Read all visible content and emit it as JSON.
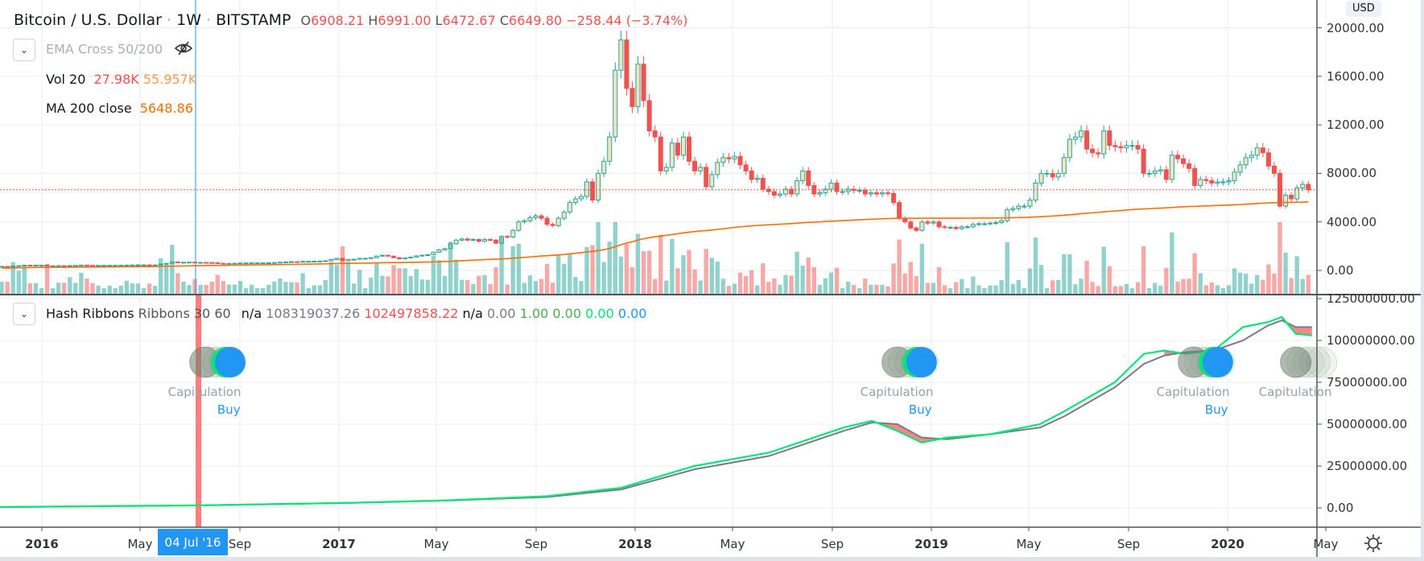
{
  "header": {
    "symbol": "Bitcoin / U.S. Dollar",
    "interval": "1W",
    "exchange": "BITSTAMP",
    "sep": "·",
    "open_label": "O",
    "open": "6908.21",
    "high_label": "H",
    "high": "6991.00",
    "low_label": "L",
    "low": "6472.67",
    "close_label": "C",
    "close": "6649.80",
    "change": "−258.44 (−3.74%)"
  },
  "legend": {
    "ema": {
      "label": "EMA Cross 50/200",
      "hidden": true
    },
    "vol": {
      "label": "Vol 20",
      "value1": "27.98K",
      "value2": "55.957K"
    },
    "ma": {
      "label": "MA 200 close",
      "value": "5648.86"
    },
    "hash": {
      "label": "Hash Ribbons",
      "sublabel": "Ribbons",
      "params": "30 60",
      "v1": "n/a",
      "v2": "108319037.26",
      "v3": "102497858.22",
      "v4": "n/a",
      "v5": "0.00",
      "v6": "1.00",
      "v7": "0.00",
      "v8": "0.00",
      "v9": "0.00"
    }
  },
  "price_axis": {
    "currency": "USD",
    "ticks": [
      "20000.00",
      "16000.00",
      "12000.00",
      "8000.00",
      "4000.00",
      "0.00"
    ],
    "tick_values": [
      20000,
      16000,
      12000,
      8000,
      4000,
      0
    ]
  },
  "hash_axis": {
    "ticks": [
      "125000000.00",
      "100000000.00",
      "75000000.00",
      "50000000.00",
      "25000000.00",
      "0.00"
    ],
    "tick_values": [
      125,
      100,
      75,
      50,
      25,
      0
    ]
  },
  "time_axis": {
    "labels": [
      {
        "text": "2016",
        "date": "2016-01-01",
        "bold": true
      },
      {
        "text": "May",
        "date": "2016-05-01"
      },
      {
        "text": "Sep",
        "date": "2016-09-01"
      },
      {
        "text": "2017",
        "date": "2017-01-01",
        "bold": true
      },
      {
        "text": "May",
        "date": "2017-05-01"
      },
      {
        "text": "Sep",
        "date": "2017-09-01"
      },
      {
        "text": "2018",
        "date": "2018-01-01",
        "bold": true
      },
      {
        "text": "May",
        "date": "2018-05-01"
      },
      {
        "text": "Sep",
        "date": "2018-09-01"
      },
      {
        "text": "2019",
        "date": "2019-01-01",
        "bold": true
      },
      {
        "text": "May",
        "date": "2019-05-01"
      },
      {
        "text": "Sep",
        "date": "2019-09-01"
      },
      {
        "text": "2020",
        "date": "2020-01-01",
        "bold": true
      },
      {
        "text": "May",
        "date": "2020-05-01"
      }
    ],
    "crosshair_date": "04 Jul '16"
  },
  "colors": {
    "up": "#26a69a",
    "up_fill": "#f7e3c4",
    "down": "#ef5350",
    "ma": "#ff6d00",
    "hash_fast": "#00e676",
    "hash_slow": "#787b86",
    "buy": "#2196f3",
    "capitulation": "#9aa0a6",
    "last_price": "#ef5350",
    "crosshair": "#2196f3"
  },
  "chart_data": {
    "type": "candlestick",
    "first_week": "2015-11-09",
    "weekly_close": [
      330,
      320,
      360,
      390,
      430,
      420,
      430,
      430,
      380,
      380,
      390,
      380,
      400,
      410,
      440,
      420,
      410,
      415,
      415,
      420,
      420,
      425,
      440,
      450,
      460,
      460,
      450,
      455,
      520,
      580,
      700,
      650,
      670,
      680,
      650,
      660,
      650,
      630,
      590,
      570,
      580,
      590,
      610,
      610,
      620,
      620,
      620,
      630,
      650,
      680,
      700,
      720,
      700,
      750,
      750,
      760,
      770,
      800,
      900,
      1000,
      800,
      900,
      920,
      1000,
      1000,
      1050,
      1180,
      1250,
      1180,
      1050,
      950,
      1040,
      1100,
      1200,
      1250,
      1300,
      1500,
      1700,
      1800,
      2200,
      2500,
      2600,
      2500,
      2550,
      2400,
      2550,
      2500,
      2250,
      2800,
      2750,
      3300,
      4000,
      4100,
      4350,
      4500,
      4300,
      3800,
      3700,
      4300,
      4800,
      5600,
      5900,
      6100,
      7300,
      5800,
      8000,
      9000,
      11000,
      16500,
      19000,
      15000,
      13500,
      17000,
      14000,
      11500,
      11000,
      8200,
      8500,
      10500,
      9500,
      11000,
      9000,
      8200,
      8500,
      6900,
      7900,
      8900,
      9300,
      9200,
      9400,
      8700,
      8200,
      7500,
      7600,
      6700,
      6500,
      6200,
      6300,
      6700,
      6300,
      7400,
      8200,
      7000,
      6300,
      6400,
      6700,
      7200,
      6500,
      6500,
      6700,
      6600,
      6600,
      6300,
      6400,
      6300,
      6400,
      6350,
      5600,
      4300,
      4000,
      3500,
      3300,
      4000,
      3900,
      4000,
      3600,
      3550,
      3550,
      3450,
      3600,
      3600,
      3800,
      3850,
      3850,
      3900,
      3950,
      4100,
      5000,
      5100,
      5300,
      5300,
      5800,
      7200,
      8000,
      8000,
      7700,
      8000,
      9300,
      10800,
      11000,
      11500,
      10000,
      9700,
      9600,
      11500,
      10300,
      10200,
      10100,
      10300,
      10300,
      10000,
      8000,
      8000,
      8200,
      8300,
      7500,
      9500,
      9200,
      8800,
      8400,
      7000,
      7500,
      7400,
      7200,
      7300,
      7300,
      7400,
      8100,
      8700,
      9300,
      9500,
      10100,
      9700,
      8600,
      8000,
      5300,
      6200,
      5900,
      6800,
      7100,
      6649.8
    ],
    "ma200_last": 5648.86,
    "last_price": 6649.8,
    "hash_ribbons": {
      "unit": "million",
      "points": [
        {
          "date": "2015-11-09",
          "fast": 0.5,
          "slow": 0.5
        },
        {
          "date": "2016-07-15",
          "fast": 1.5,
          "slow": 1.5
        },
        {
          "date": "2017-01-15",
          "fast": 3,
          "slow": 3
        },
        {
          "date": "2017-05-15",
          "fast": 4.5,
          "slow": 4.4
        },
        {
          "date": "2017-09-15",
          "fast": 7,
          "slow": 6.5
        },
        {
          "date": "2017-12-15",
          "fast": 12,
          "slow": 11
        },
        {
          "date": "2018-03-15",
          "fast": 25,
          "slow": 23
        },
        {
          "date": "2018-06-15",
          "fast": 33,
          "slow": 31
        },
        {
          "date": "2018-09-15",
          "fast": 48,
          "slow": 46
        },
        {
          "date": "2018-10-20",
          "fast": 52,
          "slow": 51
        },
        {
          "date": "2018-11-20",
          "fast": 46,
          "slow": 50
        },
        {
          "date": "2018-12-20",
          "fast": 39,
          "slow": 42
        },
        {
          "date": "2019-01-20",
          "fast": 42,
          "slow": 41
        },
        {
          "date": "2019-03-15",
          "fast": 44,
          "slow": 44
        },
        {
          "date": "2019-05-15",
          "fast": 50,
          "slow": 48
        },
        {
          "date": "2019-06-15",
          "fast": 58,
          "slow": 55
        },
        {
          "date": "2019-08-15",
          "fast": 75,
          "slow": 72
        },
        {
          "date": "2019-09-20",
          "fast": 92,
          "slow": 86
        },
        {
          "date": "2019-10-15",
          "fast": 94,
          "slow": 91
        },
        {
          "date": "2019-11-10",
          "fast": 92,
          "slow": 93
        },
        {
          "date": "2019-12-15",
          "fast": 94,
          "slow": 94
        },
        {
          "date": "2020-01-20",
          "fast": 108,
          "slow": 100
        },
        {
          "date": "2020-02-20",
          "fast": 111,
          "slow": 109
        },
        {
          "date": "2020-03-08",
          "fast": 114,
          "slow": 112
        },
        {
          "date": "2020-03-25",
          "fast": 104,
          "slow": 108
        },
        {
          "date": "2020-04-14",
          "fast": 103,
          "slow": 108
        }
      ],
      "signals": [
        {
          "type": "Capitulation",
          "date": "2016-07-20"
        },
        {
          "type": "Buy",
          "date": "2016-08-20"
        },
        {
          "type": "Capitulation",
          "date": "2018-11-20"
        },
        {
          "type": "Buy",
          "date": "2018-12-20"
        },
        {
          "type": "Capitulation",
          "date": "2019-11-20"
        },
        {
          "type": "Buy",
          "date": "2019-12-20"
        },
        {
          "type": "Capitulation",
          "date": "2020-03-25"
        }
      ]
    }
  }
}
